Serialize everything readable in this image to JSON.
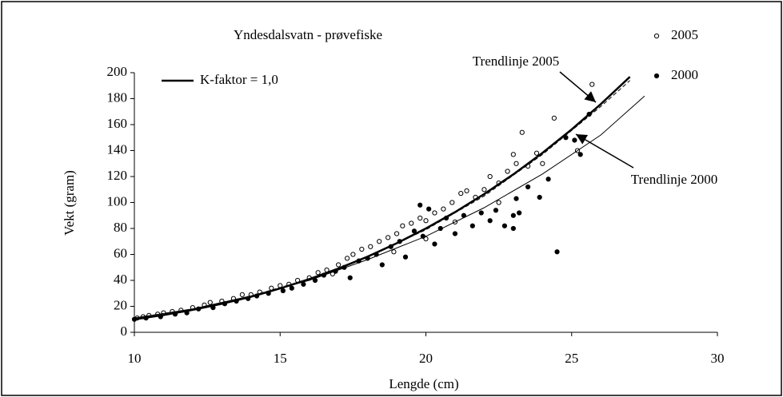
{
  "chart_data": {
    "type": "scatter",
    "title": "Yndesdalsvatn - prøvefiske",
    "x_label": "Lengde (cm)",
    "y_label": "Vekt (gram)",
    "xlim": [
      10,
      30
    ],
    "xticks": [
      10,
      15,
      20,
      25,
      30
    ],
    "ylim": [
      0,
      200
    ],
    "yticks": [
      0,
      20,
      40,
      60,
      80,
      100,
      120,
      140,
      160,
      180,
      200
    ],
    "grid": false,
    "series": [
      {
        "name": "2005",
        "kind": "marker",
        "marker": "open",
        "color": "#000000",
        "x": [
          10.1,
          10.3,
          10.5,
          10.8,
          11.0,
          11.3,
          11.6,
          12.0,
          12.4,
          12.6,
          13.0,
          13.4,
          13.7,
          14.0,
          14.3,
          14.7,
          15.0,
          15.3,
          15.6,
          16.0,
          16.3,
          16.6,
          17.0,
          17.3,
          17.5,
          17.8,
          18.1,
          18.4,
          18.7,
          19.0,
          19.2,
          19.5,
          19.8,
          20.0,
          20.3,
          20.6,
          20.9,
          21.2,
          21.4,
          21.7,
          22.0,
          22.2,
          22.5,
          22.8,
          23.0,
          23.1,
          23.3,
          23.5,
          23.8,
          24.0,
          24.4,
          25.2,
          25.7,
          20.0,
          18.9,
          21.0,
          16.8,
          22.5
        ],
        "values": [
          11,
          12,
          13,
          14,
          15,
          16,
          17,
          19,
          21,
          23,
          24,
          26,
          29,
          29,
          31,
          34,
          36,
          37,
          40,
          42,
          46,
          48,
          52,
          57,
          60,
          64,
          66,
          70,
          73,
          76,
          82,
          84,
          88,
          86,
          92,
          95,
          100,
          107,
          109,
          104,
          110,
          120,
          115,
          124,
          137,
          130,
          154,
          128,
          138,
          130,
          165,
          140,
          191,
          72,
          62,
          85,
          45,
          100
        ]
      },
      {
        "name": "2000",
        "kind": "marker",
        "marker": "filled",
        "color": "#000000",
        "x": [
          10.0,
          10.4,
          10.9,
          11.4,
          11.8,
          12.2,
          12.7,
          13.1,
          13.5,
          13.9,
          14.2,
          14.6,
          15.1,
          15.4,
          15.8,
          16.2,
          16.5,
          16.9,
          17.2,
          17.4,
          17.7,
          18.0,
          18.3,
          18.5,
          18.8,
          19.1,
          19.3,
          19.6,
          19.8,
          19.9,
          20.1,
          20.3,
          20.5,
          20.7,
          21.0,
          21.3,
          21.6,
          21.9,
          22.2,
          22.4,
          22.7,
          23.0,
          23.0,
          23.1,
          23.2,
          23.5,
          23.9,
          24.2,
          24.5,
          24.8,
          25.1,
          25.3,
          25.6
        ],
        "values": [
          10,
          11,
          12,
          14,
          15,
          18,
          19,
          22,
          24,
          26,
          28,
          30,
          32,
          34,
          37,
          40,
          44,
          47,
          50,
          42,
          55,
          57,
          60,
          52,
          66,
          70,
          58,
          78,
          98,
          74,
          95,
          68,
          80,
          88,
          76,
          90,
          82,
          92,
          86,
          94,
          82,
          90,
          80,
          103,
          92,
          112,
          104,
          118,
          62,
          150,
          148,
          137,
          168
        ]
      },
      {
        "name": "K-faktor = 1,0",
        "kind": "line",
        "color": "#000000",
        "width": 2.5,
        "dash": false,
        "x": [
          10,
          11,
          12,
          13,
          14,
          15,
          16,
          17,
          18,
          19,
          20,
          21,
          22,
          23,
          24,
          25,
          26,
          27
        ],
        "values": [
          10,
          13.3,
          17.3,
          22,
          27.4,
          33.8,
          41,
          49.1,
          58.3,
          68.6,
          80,
          92.6,
          106.5,
          121.7,
          138.2,
          156.3,
          175.8,
          196.8
        ]
      },
      {
        "name": "Trendlinje 2005",
        "kind": "line",
        "color": "#000000",
        "width": 1,
        "dash": true,
        "x": [
          10,
          12,
          14,
          16,
          18,
          20,
          22,
          24,
          26,
          27
        ],
        "values": [
          11,
          18,
          28,
          41,
          58,
          79,
          105,
          137,
          174,
          194
        ]
      },
      {
        "name": "Trendlinje 2000",
        "kind": "line",
        "color": "#000000",
        "width": 1,
        "dash": false,
        "x": [
          10,
          12,
          14,
          16,
          18,
          20,
          22,
          24,
          26,
          27.5
        ],
        "values": [
          11,
          18,
          28,
          40,
          56,
          74,
          96,
          122,
          152,
          182
        ]
      }
    ]
  }
}
